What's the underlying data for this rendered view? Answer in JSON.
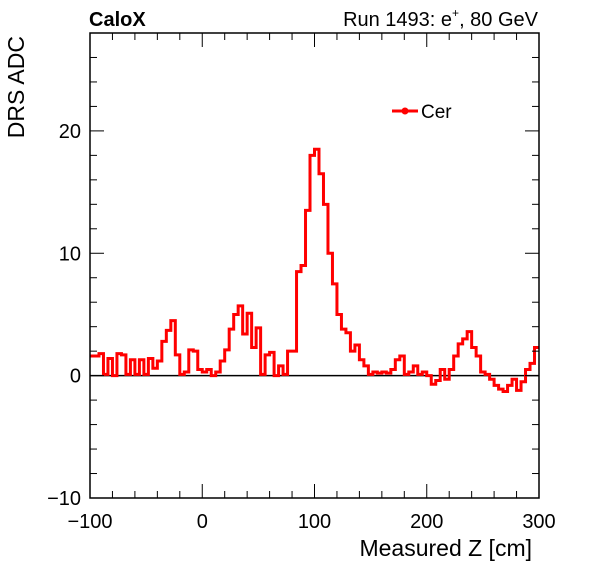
{
  "chart_data": {
    "type": "histogram",
    "experiment_label": "CaloX",
    "run_label": "Run 1493: e",
    "run_label_sup": "+",
    "run_label_tail": ", 80 GeV",
    "xlabel": "Measured Z [cm]",
    "ylabel": "DRS ADC",
    "xlim": [
      -100,
      300
    ],
    "ylim": [
      -10,
      28
    ],
    "x_ticks": [
      -100,
      0,
      100,
      200,
      300
    ],
    "x_tick_labels": [
      "−100",
      "0",
      "100",
      "200",
      "300"
    ],
    "y_ticks": [
      -10,
      0,
      10,
      20
    ],
    "y_tick_labels": [
      "−10",
      "0",
      "10",
      "20"
    ],
    "grid": false,
    "legend_position": "top-right",
    "series": [
      {
        "name": "Cer",
        "color": "#ff0000",
        "bin_edges": [
          -100,
          -92,
          -88,
          -84,
          -80,
          -76,
          -72,
          -68,
          -64,
          -60,
          -56,
          -52,
          -48,
          -44,
          -40,
          -36,
          -32,
          -28,
          -24,
          -20,
          -16,
          -12,
          -8,
          -4,
          0,
          4,
          8,
          12,
          16,
          20,
          24,
          28,
          32,
          36,
          40,
          44,
          48,
          52,
          56,
          60,
          64,
          68,
          72,
          76,
          80,
          84,
          88,
          92,
          96,
          100,
          104,
          108,
          112,
          116,
          120,
          124,
          128,
          132,
          136,
          140,
          144,
          148,
          152,
          156,
          160,
          164,
          168,
          172,
          176,
          180,
          184,
          188,
          192,
          196,
          200,
          204,
          208,
          212,
          216,
          220,
          224,
          228,
          232,
          236,
          240,
          244,
          248,
          252,
          256,
          260,
          264,
          268,
          272,
          276,
          280,
          284,
          288,
          292,
          296,
          300
        ],
        "values": [
          1.6,
          1.8,
          0.1,
          1.4,
          0,
          1.8,
          1.7,
          0.1,
          1.3,
          0.1,
          1.3,
          0.1,
          1.4,
          0.6,
          1.2,
          2.8,
          3.7,
          4.5,
          1.7,
          0.1,
          0.3,
          2.1,
          2.0,
          0.5,
          0.3,
          0.5,
          0.0,
          0.3,
          1.2,
          2.1,
          3.8,
          5.0,
          5.7,
          3.4,
          5.1,
          2.3,
          3.9,
          0.1,
          1.7,
          1.9,
          0.0,
          0.8,
          0.1,
          2.0,
          2.0,
          8.5,
          9.0,
          13.5,
          18.0,
          18.5,
          16.5,
          14.0,
          10.0,
          7.5,
          5.0,
          3.8,
          3.5,
          2.0,
          2.5,
          1.3,
          0.8,
          0.1,
          0.3,
          0.2,
          0.3,
          0.2,
          0.5,
          1.3,
          1.6,
          0.1,
          0.3,
          0.8,
          0.1,
          0.3,
          0.0,
          -0.7,
          -0.4,
          0.5,
          -0.3,
          0.5,
          1.6,
          2.6,
          3.0,
          3.6,
          2.3,
          1.6,
          0.3,
          0.1,
          -0.3,
          -0.8,
          -1.1,
          -1.3,
          -0.8,
          -0.3,
          -1.2,
          -0.5,
          0.5,
          1.0,
          2.3
        ]
      }
    ]
  }
}
